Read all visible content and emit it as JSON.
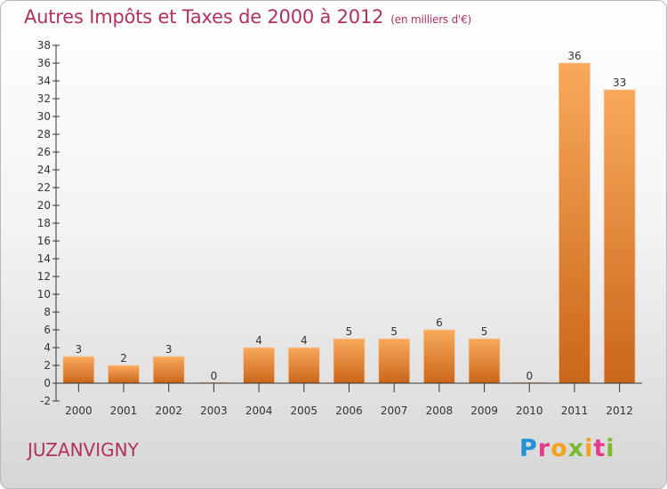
{
  "chart_data": {
    "type": "bar",
    "title": "Autres Impôts et Taxes de 2000 à 2012",
    "title_unit": "(en milliers d'€)",
    "categories": [
      "2000",
      "2001",
      "2002",
      "2003",
      "2004",
      "2005",
      "2006",
      "2007",
      "2008",
      "2009",
      "2010",
      "2011",
      "2012"
    ],
    "values": [
      3,
      2,
      3,
      0,
      4,
      4,
      5,
      5,
      6,
      5,
      0,
      36,
      33
    ],
    "ylim": [
      -2,
      38
    ],
    "yticks": [
      -2,
      0,
      2,
      4,
      6,
      8,
      10,
      12,
      14,
      16,
      18,
      20,
      22,
      24,
      26,
      28,
      30,
      32,
      34,
      36,
      38
    ],
    "grid": false,
    "colors": {
      "bar_top": "#f9a95a",
      "bar_bottom": "#c9661c",
      "axis": "#333333",
      "title": "#b03060"
    }
  },
  "commune": "JUZANVIGNY",
  "logo": {
    "letters": [
      "P",
      "r",
      "o",
      "x",
      "i",
      "t",
      "i"
    ]
  }
}
